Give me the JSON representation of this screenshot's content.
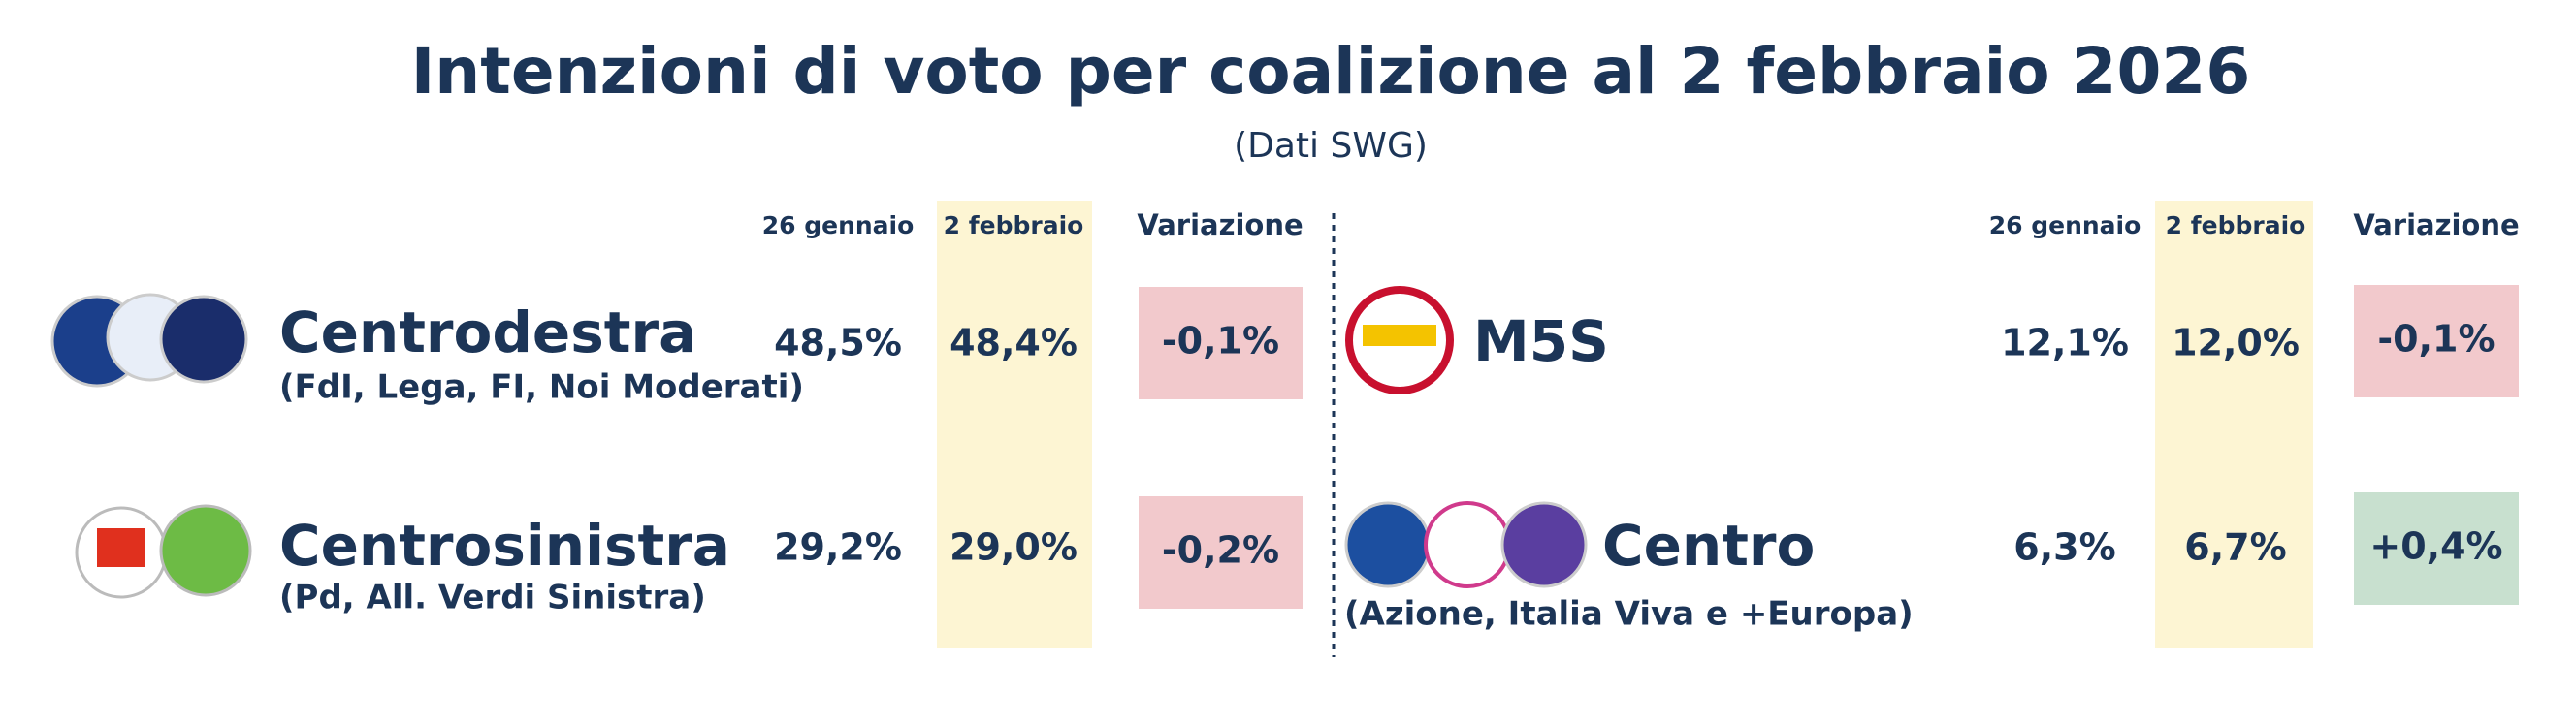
{
  "title": "Intenzioni di voto per coalizione al 2 febbraio 2026",
  "subtitle": "(Dati SWG)",
  "panels": [
    {
      "headers": [
        "26 gennaio",
        "2 febbraio",
        "Variazione"
      ],
      "rows": [
        {
          "name": "Centrodestra",
          "parties": "(FdI, Lega, FI, Noi Moderati)",
          "jan26": "48,5%",
          "feb2": "48,4%",
          "change": "-0,1%",
          "change_color": "#f2c9cc"
        },
        {
          "name": "Centrosinistra",
          "parties": "(Pd, All. Verdi Sinistra)",
          "jan26": "29,2%",
          "feb2": "29,0%",
          "change": "-0,2%",
          "change_color": "#f2c9cc"
        }
      ]
    },
    {
      "headers": [
        "26 gennaio",
        "2 febbraio",
        "Variazione"
      ],
      "rows": [
        {
          "name": "M5S",
          "jan26": "12,1%",
          "feb2": "12,0%",
          "change": "-0,1%",
          "change_color": "#f2c9cc"
        },
        {
          "name": "Centro",
          "parties": "(Azione, Italia Viva e +Europa)",
          "jan26": "6,3%",
          "feb2": "6,7%",
          "change": "+0,4%",
          "change_color": "#c8e0cf"
        }
      ]
    }
  ]
}
